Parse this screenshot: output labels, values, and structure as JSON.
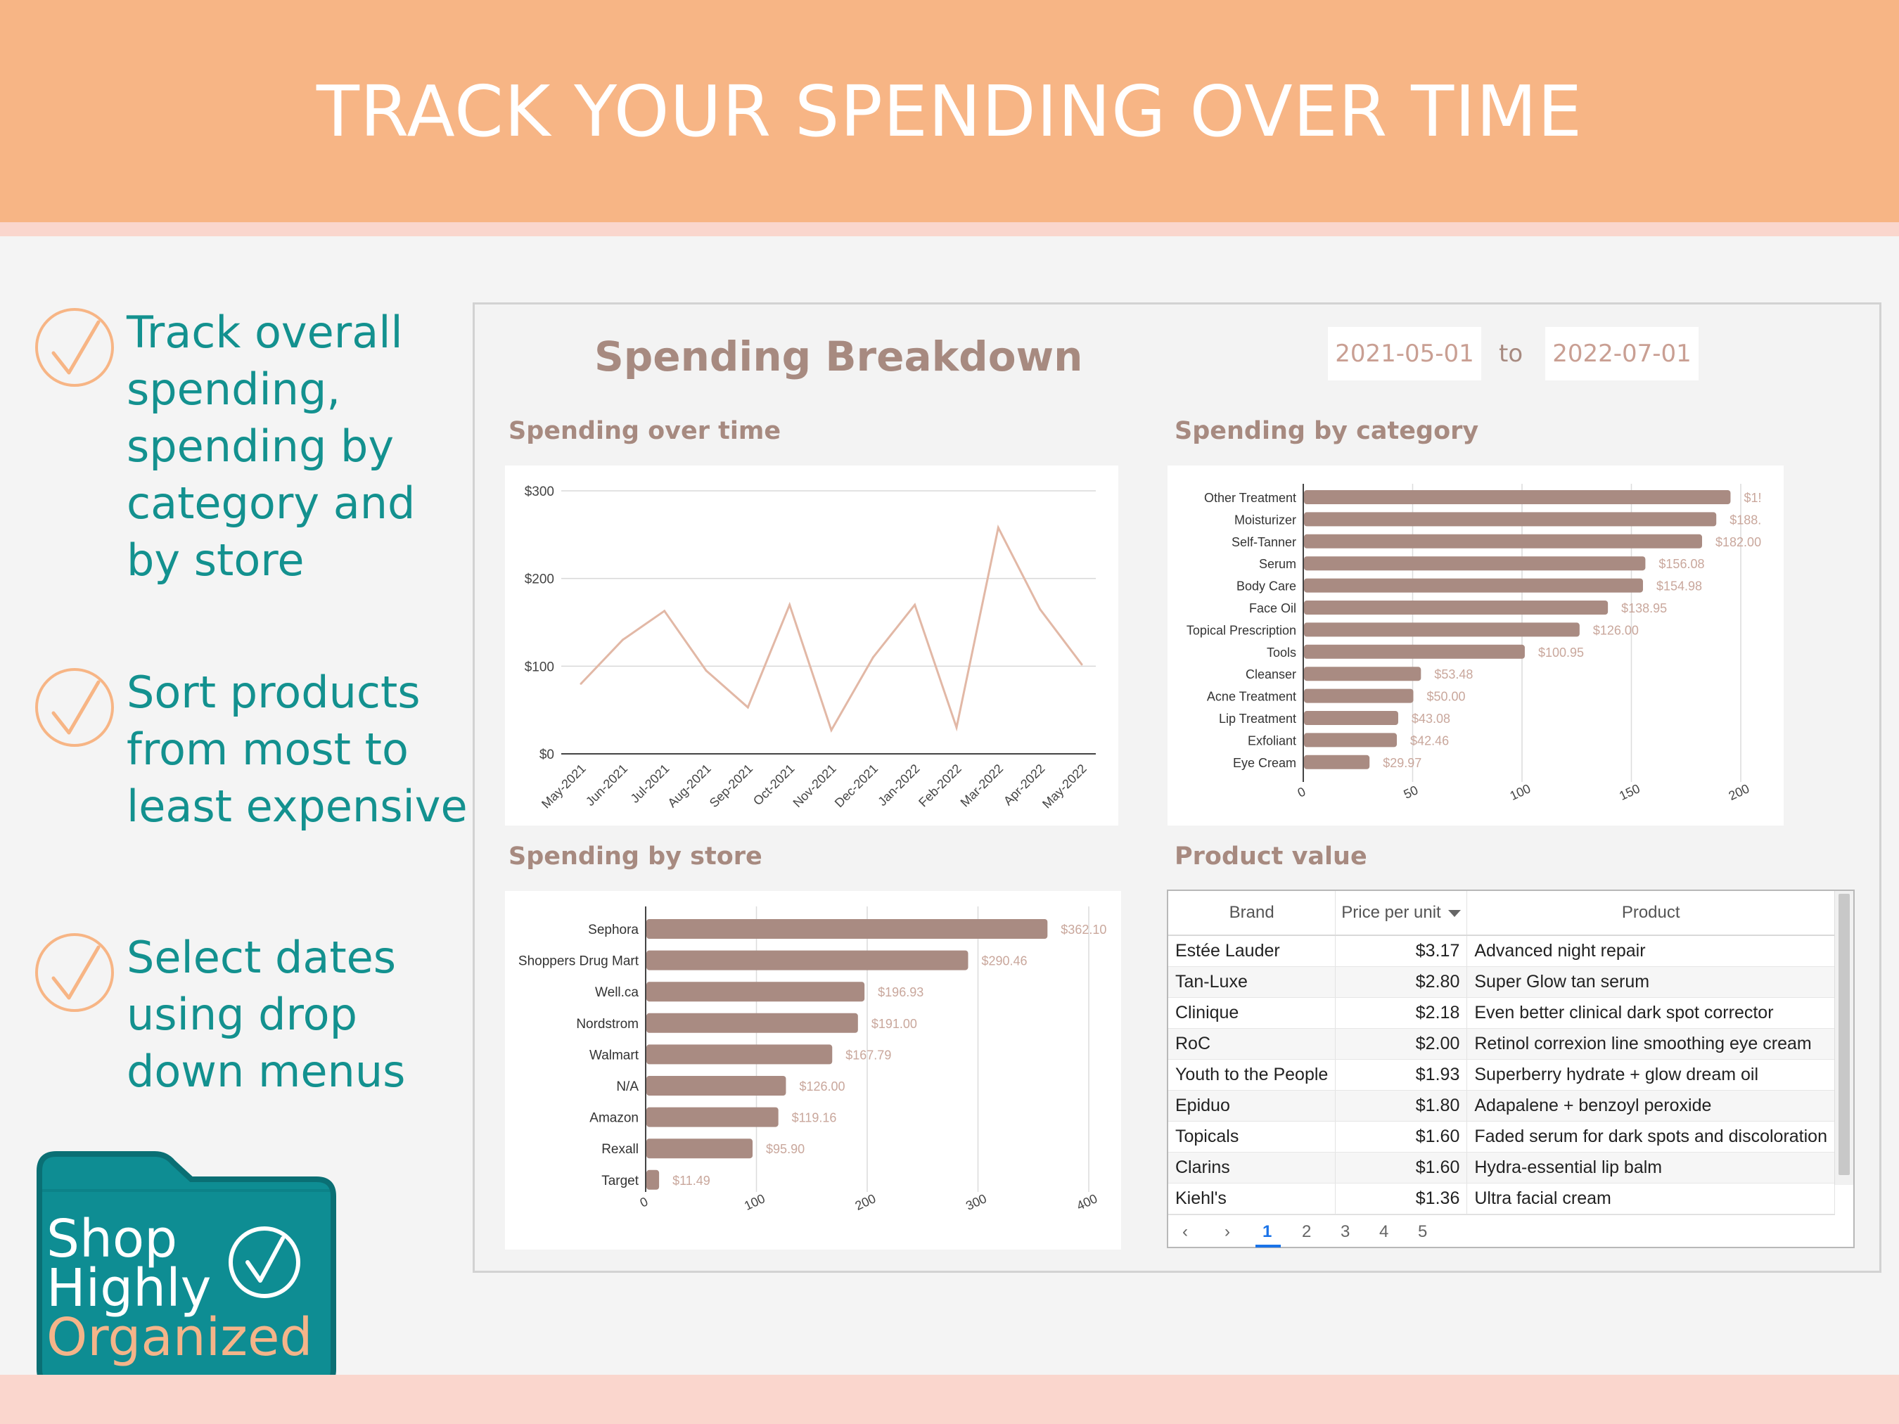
{
  "banner": {
    "title": "TRACK YOUR SPENDING OVER TIME"
  },
  "features": [
    {
      "text": "Track overall spending, spending by category and by store",
      "lines": [
        "Track overall",
        "spending,",
        "spending by",
        "category and",
        "by store"
      ]
    },
    {
      "text": "Sort products from most to least expensive",
      "lines": [
        "Sort products",
        "from most to",
        "least expensive"
      ]
    },
    {
      "text": "Select dates using drop down menus",
      "lines": [
        "Select dates",
        "using drop",
        "down menus"
      ]
    }
  ],
  "logo": {
    "line1": "Shop",
    "line2": "Highly",
    "line3": "Organized",
    "colors": {
      "bg": "#0e8d93",
      "border": "#0a6f74",
      "text1": "#ffffff",
      "text3": "#f4b489"
    }
  },
  "dashboard": {
    "title": "Spending Breakdown",
    "date_from": "2021-05-01",
    "date_to_label": "to",
    "date_to": "2022-07-01",
    "panels": {
      "over_time": "Spending over time",
      "by_category": "Spending by category",
      "by_store": "Spending by store",
      "product_value": "Product value"
    }
  },
  "colors": {
    "accent": "#f7b585",
    "teal": "#13918f",
    "bar": "#a98b82",
    "line": "#e2b8a6",
    "label": "#c9a79c"
  },
  "chart_data": [
    {
      "type": "line",
      "title": "Spending over time",
      "x": [
        "May-2021",
        "Jun-2021",
        "Jul-2021",
        "Aug-2021",
        "Sep-2021",
        "Oct-2021",
        "Nov-2021",
        "Dec-2021",
        "Jan-2022",
        "Feb-2022",
        "Mar-2022",
        "Apr-2022",
        "May-2022"
      ],
      "values": [
        80,
        130,
        163,
        95,
        53,
        170,
        27,
        110,
        170,
        30,
        258,
        165,
        102
      ],
      "y_ticks": [
        "$0",
        "$100",
        "$200",
        "$300"
      ],
      "ylim": [
        0,
        300
      ],
      "grid": true
    },
    {
      "type": "bar",
      "orientation": "horizontal",
      "title": "Spending by category",
      "categories": [
        "Other Treatment",
        "Moisturizer",
        "Self-Tanner",
        "Serum",
        "Body Care",
        "Face Oil",
        "Topical Prescription",
        "Tools",
        "Cleanser",
        "Acne Treatment",
        "Lip Treatment",
        "Exfoliant",
        "Eye Cream"
      ],
      "values": [
        195,
        188.5,
        182.0,
        156.08,
        154.98,
        138.95,
        126.0,
        100.95,
        53.48,
        50.0,
        43.08,
        42.46,
        29.97
      ],
      "labels": [
        "$1!",
        "$188.",
        "$182.00",
        "$156.08",
        "$154.98",
        "$138.95",
        "$126.00",
        "$100.95",
        "$53.48",
        "$50.00",
        "$43.08",
        "$42.46",
        "$29.97"
      ],
      "x_ticks": [
        "0",
        "50",
        "100",
        "150",
        "200"
      ],
      "xlim": [
        0,
        200
      ],
      "grid": true
    },
    {
      "type": "bar",
      "orientation": "horizontal",
      "title": "Spending by store",
      "categories": [
        "Sephora",
        "Shoppers Drug Mart",
        "Well.ca",
        "Nordstrom",
        "Walmart",
        "N/A",
        "Amazon",
        "Rexall",
        "Target"
      ],
      "values": [
        362.1,
        290.46,
        196.93,
        191.0,
        167.79,
        126.0,
        119.16,
        95.9,
        11.49
      ],
      "labels": [
        "$362.10",
        "$290.46",
        "$196.93",
        "$191.00",
        "$167.79",
        "$126.00",
        "$119.16",
        "$95.90",
        "$11.49"
      ],
      "x_ticks": [
        "0",
        "100",
        "200",
        "300",
        "400"
      ],
      "xlim": [
        0,
        400
      ],
      "grid": true
    },
    {
      "type": "table",
      "title": "Product value",
      "columns": [
        "Brand",
        "Price per unit",
        "Product"
      ],
      "sort_indicator": "down-arrow",
      "rows": [
        [
          "Estée Lauder",
          "$3.17",
          "Advanced night repair"
        ],
        [
          "Tan-Luxe",
          "$2.80",
          "Super Glow tan serum"
        ],
        [
          "Clinique",
          "$2.18",
          "Even better clinical dark spot corrector"
        ],
        [
          "RoC",
          "$2.00",
          "Retinol correxion line smoothing eye cream"
        ],
        [
          "Youth to the People",
          "$1.93",
          "Superberry hydrate + glow dream oil"
        ],
        [
          "Epiduo",
          "$1.80",
          "Adapalene + benzoyl peroxide"
        ],
        [
          "Topicals",
          "$1.60",
          "Faded serum for dark spots and discoloration"
        ],
        [
          "Clarins",
          "$1.60",
          "Hydra-essential lip balm"
        ],
        [
          "Kiehl's",
          "$1.36",
          "Ultra facial cream"
        ]
      ],
      "pages": [
        "1",
        "2",
        "3",
        "4",
        "5"
      ],
      "current_page": "1"
    }
  ]
}
